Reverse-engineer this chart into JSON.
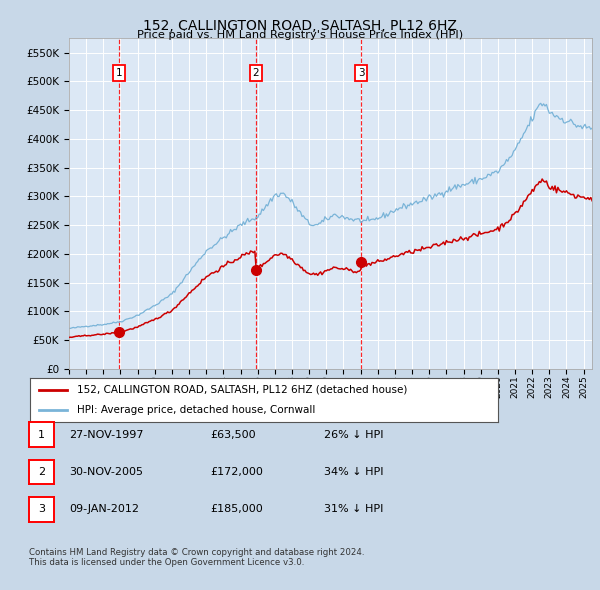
{
  "title": "152, CALLINGTON ROAD, SALTASH, PL12 6HZ",
  "subtitle": "Price paid vs. HM Land Registry's House Price Index (HPI)",
  "bg_color": "#c8d8e8",
  "plot_bg_color": "#dce8f5",
  "grid_color": "#ffffff",
  "hpi_color": "#7ab4d8",
  "price_color": "#cc0000",
  "ylim": [
    0,
    575000
  ],
  "yticks": [
    0,
    50000,
    100000,
    150000,
    200000,
    250000,
    300000,
    350000,
    400000,
    450000,
    500000,
    550000
  ],
  "purchases": [
    {
      "date_label": "27-NOV-1997",
      "date_x": 1997.9,
      "price": 63500,
      "label": "1"
    },
    {
      "date_label": "30-NOV-2005",
      "date_x": 2005.9,
      "price": 172000,
      "label": "2"
    },
    {
      "date_label": "09-JAN-2012",
      "date_x": 2012.03,
      "price": 185000,
      "label": "3"
    }
  ],
  "legend_line1": "152, CALLINGTON ROAD, SALTASH, PL12 6HZ (detached house)",
  "legend_line2": "HPI: Average price, detached house, Cornwall",
  "table_rows": [
    {
      "num": "1",
      "date": "27-NOV-1997",
      "price": "£63,500",
      "hpi": "26% ↓ HPI"
    },
    {
      "num": "2",
      "date": "30-NOV-2005",
      "price": "£172,000",
      "hpi": "34% ↓ HPI"
    },
    {
      "num": "3",
      "date": "09-JAN-2012",
      "price": "£185,000",
      "hpi": "31% ↓ HPI"
    }
  ],
  "footer": "Contains HM Land Registry data © Crown copyright and database right 2024.\nThis data is licensed under the Open Government Licence v3.0.",
  "xmin": 1995.0,
  "xmax": 2025.5
}
